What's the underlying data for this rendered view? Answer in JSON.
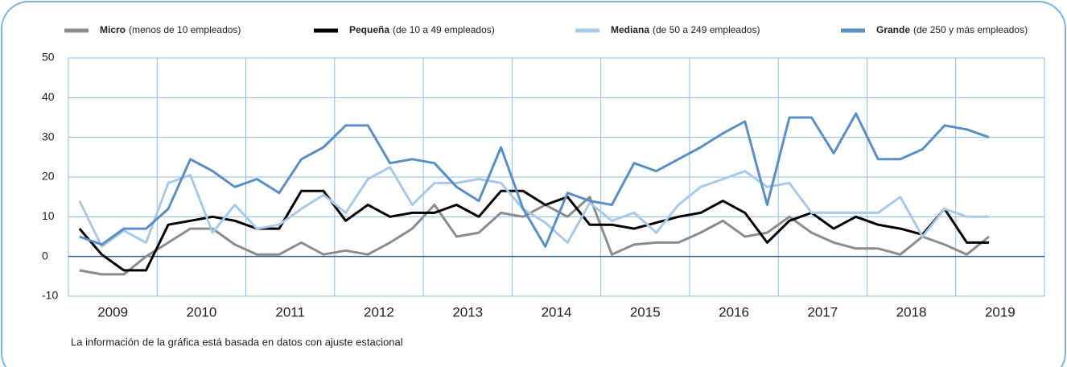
{
  "chart_data": {
    "type": "line",
    "x": [
      2009.125,
      2009.375,
      2009.625,
      2009.875,
      2010.125,
      2010.375,
      2010.625,
      2010.875,
      2011.125,
      2011.375,
      2011.625,
      2011.875,
      2012.125,
      2012.375,
      2012.625,
      2012.875,
      2013.125,
      2013.375,
      2013.625,
      2013.875,
      2014.125,
      2014.375,
      2014.625,
      2014.875,
      2015.125,
      2015.375,
      2015.625,
      2015.875,
      2016.125,
      2016.375,
      2016.625,
      2016.875,
      2017.125,
      2017.375,
      2017.625,
      2017.875,
      2018.125,
      2018.375,
      2018.625,
      2018.875,
      2019.125,
      2019.375
    ],
    "xlim": [
      2009,
      2020
    ],
    "xticks": [
      {
        "value": 2009.5,
        "label": "2009"
      },
      {
        "value": 2010.5,
        "label": "2010"
      },
      {
        "value": 2011.5,
        "label": "2011"
      },
      {
        "value": 2012.5,
        "label": "2012"
      },
      {
        "value": 2013.5,
        "label": "2013"
      },
      {
        "value": 2014.5,
        "label": "2014"
      },
      {
        "value": 2015.5,
        "label": "2015"
      },
      {
        "value": 2016.5,
        "label": "2016"
      },
      {
        "value": 2017.5,
        "label": "2017"
      },
      {
        "value": 2018.5,
        "label": "2018"
      },
      {
        "value": 2019.5,
        "label": "2019"
      }
    ],
    "ylim": [
      -10,
      50
    ],
    "yticks": [
      -10,
      0,
      10,
      20,
      30,
      40,
      50
    ],
    "grid": true,
    "series": [
      {
        "name": "Micro",
        "note": "(menos de 10 empleados)",
        "color": "#8c8c8c",
        "values": [
          -3.5,
          -4.5,
          -4.5,
          0,
          3.5,
          7,
          7,
          3,
          0.5,
          0.5,
          3.5,
          0.5,
          1.5,
          0.5,
          3.5,
          7,
          13,
          5,
          6,
          11,
          10,
          13,
          10,
          15,
          0.5,
          3,
          3.5,
          3.5,
          6,
          9,
          5,
          6,
          10,
          6,
          3.5,
          2,
          2,
          0.5,
          5,
          3,
          0.5,
          5
        ]
      },
      {
        "name": "Pequeña",
        "note": "(de 10 a 49 empleados)",
        "color": "#000000",
        "values": [
          7,
          0.5,
          -3.5,
          -3.5,
          8,
          9,
          10,
          9,
          7,
          7,
          16.5,
          16.5,
          9,
          13,
          10,
          11,
          11,
          13,
          10,
          16.5,
          16.5,
          13,
          15,
          8,
          8,
          7,
          8.5,
          10,
          11,
          14,
          11,
          3.5,
          9,
          11,
          7,
          10,
          8,
          7,
          5.5,
          12,
          3.5,
          3.5
        ]
      },
      {
        "name": "Mediana",
        "note": "(de 50 a 249 empleados)",
        "color": "#a9c9e8",
        "values": [
          14,
          2.5,
          6.5,
          3.5,
          18.5,
          20.5,
          6,
          13,
          7,
          8,
          12,
          15.5,
          11,
          19.5,
          22.5,
          13,
          18.5,
          18.5,
          19.5,
          18.5,
          12,
          8.5,
          3.5,
          13.5,
          9,
          11,
          6,
          13,
          17.5,
          19.5,
          21.5,
          17.5,
          18.5,
          11,
          11,
          11,
          11,
          15,
          5,
          12,
          10,
          10
        ]
      },
      {
        "name": "Grande",
        "note": "(de 250 y más empleados)",
        "color": "#5a8ec6",
        "values": [
          5,
          3,
          7,
          7,
          12,
          24.5,
          21.5,
          17.5,
          19.5,
          16,
          24.5,
          27.5,
          33,
          33,
          23.5,
          24.5,
          23.5,
          17.5,
          14,
          27.5,
          12,
          2.5,
          16,
          14,
          13,
          23.5,
          21.5,
          24.5,
          27.5,
          31,
          34,
          13,
          35,
          35,
          26,
          36,
          24.5,
          24.5,
          27,
          33,
          32,
          30
        ]
      }
    ],
    "footnote": "La información de la gráfica está basada en datos con ajuste estacional"
  }
}
